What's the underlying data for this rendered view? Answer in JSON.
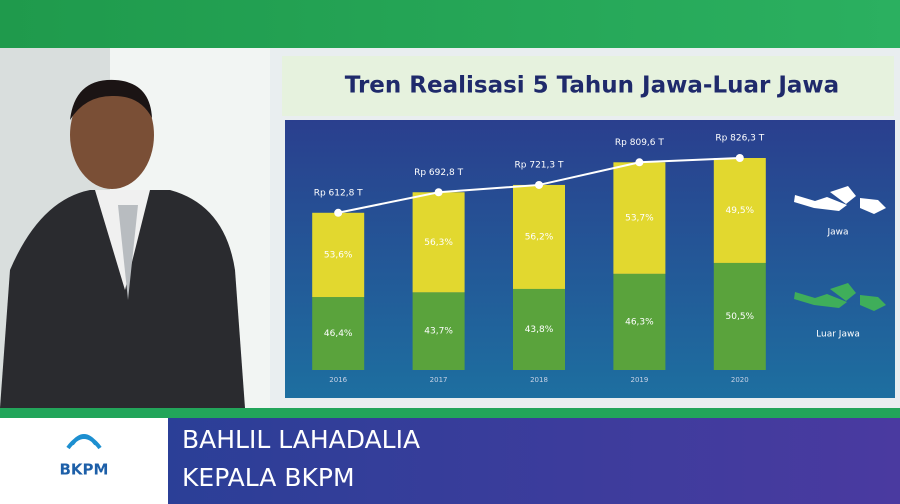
{
  "chart_data": {
    "type": "bar",
    "title": "Tren Realisasi 5 Tahun Jawa-Luar Jawa",
    "categories": [
      "2016",
      "2017",
      "2018",
      "2019",
      "2020"
    ],
    "series": [
      {
        "name": "Luar Jawa",
        "color": "#5aa33c",
        "values": [
          46.4,
          43.7,
          43.8,
          46.3,
          50.5
        ],
        "value_labels": [
          "46,4%",
          "43,7%",
          "43,8%",
          "46,3%",
          "50,5%"
        ]
      },
      {
        "name": "Jawa",
        "color": "#e2d82f",
        "values": [
          53.6,
          56.3,
          56.2,
          53.7,
          49.5
        ],
        "value_labels": [
          "53,6%",
          "56,3%",
          "56,2%",
          "53,7%",
          "49,5%"
        ]
      }
    ],
    "totals": {
      "values": [
        612.8,
        692.8,
        721.3,
        809.6,
        826.3
      ],
      "value_labels": [
        "Rp 612,8 T",
        "Rp 692,8 T",
        "Rp 721,3 T",
        "Rp 809,6 T",
        "Rp 826,3 T"
      ],
      "color": "#ffffff"
    }
  },
  "lower_third": {
    "logo_text": "BKPM",
    "name": "BAHLIL LAHADALIA",
    "position": "KEPALA BKPM"
  }
}
